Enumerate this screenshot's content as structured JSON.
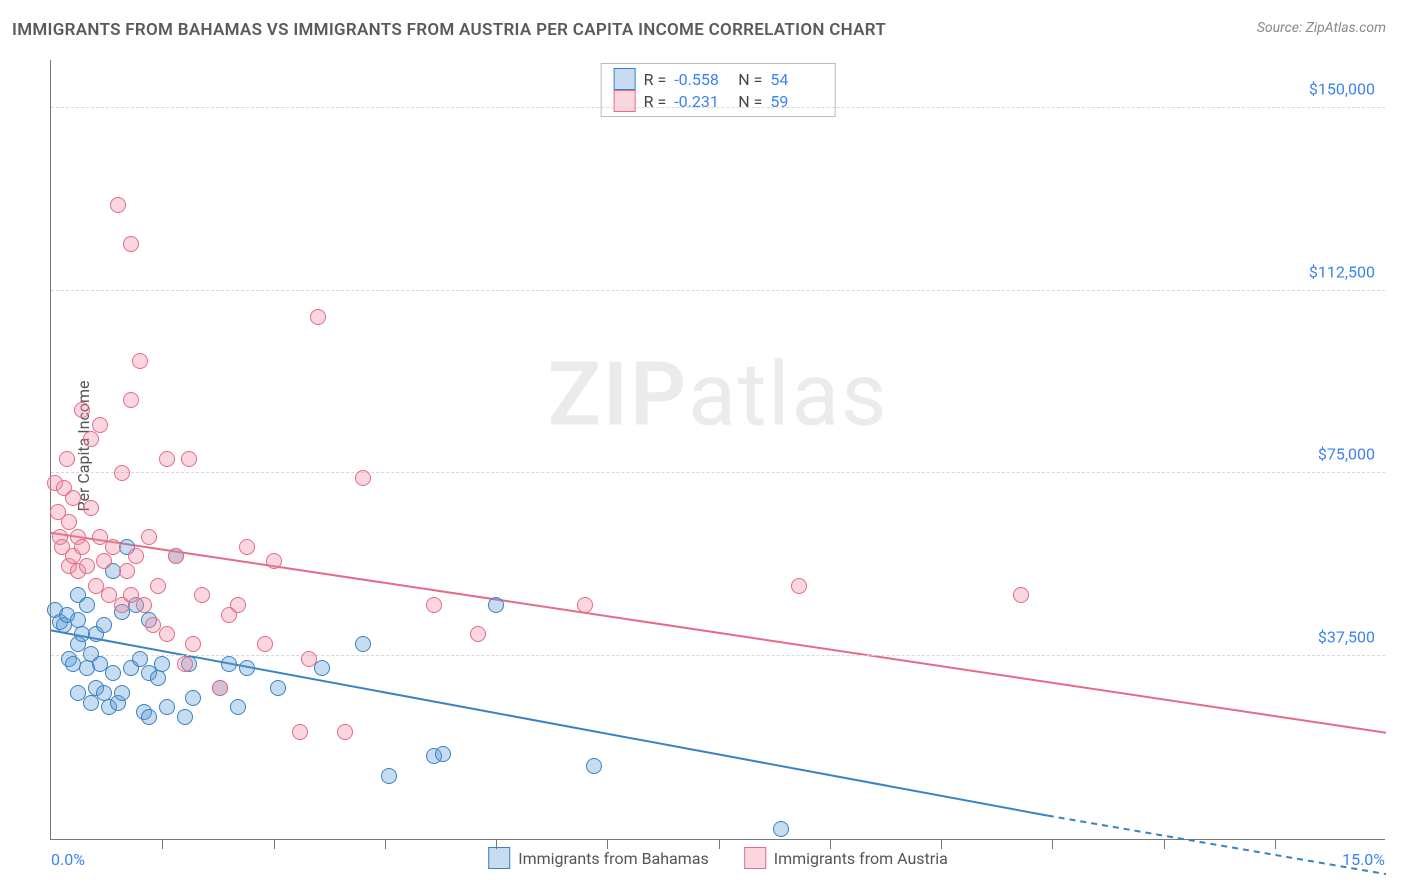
{
  "title": "IMMIGRANTS FROM BAHAMAS VS IMMIGRANTS FROM AUSTRIA PER CAPITA INCOME CORRELATION CHART",
  "source": "Source: ZipAtlas.com",
  "watermark": {
    "bold": "ZIP",
    "light": "atlas"
  },
  "chart": {
    "type": "scatter",
    "background_color": "#ffffff",
    "grid_color": "#d8d8d8",
    "axis_color": "#777777",
    "label_color": "#3b82f6",
    "title_color": "#5a5a5a",
    "y_axis": {
      "title": "Per Capita Income",
      "min": 0,
      "max": 160000,
      "ticks": [
        37500,
        75000,
        112500,
        150000
      ],
      "tick_labels": [
        "$37,500",
        "$75,000",
        "$112,500",
        "$150,000"
      ]
    },
    "x_axis": {
      "min": 0,
      "max": 15,
      "label_left": "0.0%",
      "label_right": "15.0%",
      "tick_positions": [
        1.25,
        2.5,
        3.75,
        5.0,
        6.25,
        7.5,
        8.75,
        10.0,
        11.25,
        12.5,
        13.75
      ]
    },
    "marker_radius": 8,
    "marker_opacity": 0.45,
    "line_width": 2,
    "series": [
      {
        "id": "bahamas",
        "name": "Immigrants from Bahamas",
        "color": "#5b9bd5",
        "fill": "rgba(91,155,213,0.35)",
        "stroke": "#3b82c4",
        "r": "-0.558",
        "n": "54",
        "trend": {
          "x1": 0,
          "y1": 43000,
          "x2_solid": 11.2,
          "y2_solid": 5000,
          "x2_dash": 15,
          "y2_dash": -7000
        },
        "points": [
          [
            0.05,
            47000
          ],
          [
            0.1,
            44500
          ],
          [
            0.15,
            44000
          ],
          [
            0.18,
            46000
          ],
          [
            0.2,
            37000
          ],
          [
            0.25,
            36000
          ],
          [
            0.3,
            50000
          ],
          [
            0.3,
            45000
          ],
          [
            0.3,
            40000
          ],
          [
            0.3,
            30000
          ],
          [
            0.35,
            42000
          ],
          [
            0.4,
            48000
          ],
          [
            0.4,
            35000
          ],
          [
            0.45,
            38000
          ],
          [
            0.45,
            28000
          ],
          [
            0.5,
            42000
          ],
          [
            0.5,
            31000
          ],
          [
            0.55,
            36000
          ],
          [
            0.6,
            44000
          ],
          [
            0.6,
            30000
          ],
          [
            0.65,
            27000
          ],
          [
            0.7,
            55000
          ],
          [
            0.7,
            34000
          ],
          [
            0.75,
            28000
          ],
          [
            0.8,
            46500
          ],
          [
            0.8,
            30000
          ],
          [
            0.85,
            60000
          ],
          [
            0.9,
            35000
          ],
          [
            0.95,
            48000
          ],
          [
            1.0,
            37000
          ],
          [
            1.05,
            26000
          ],
          [
            1.1,
            45000
          ],
          [
            1.1,
            34000
          ],
          [
            1.1,
            25000
          ],
          [
            1.2,
            33000
          ],
          [
            1.25,
            36000
          ],
          [
            1.3,
            27000
          ],
          [
            1.4,
            58000
          ],
          [
            1.5,
            25000
          ],
          [
            1.55,
            36000
          ],
          [
            1.6,
            29000
          ],
          [
            1.9,
            31000
          ],
          [
            2.0,
            36000
          ],
          [
            2.1,
            27000
          ],
          [
            2.2,
            35000
          ],
          [
            2.55,
            31000
          ],
          [
            3.05,
            35000
          ],
          [
            3.5,
            40000
          ],
          [
            3.8,
            13000
          ],
          [
            4.3,
            17000
          ],
          [
            4.4,
            17500
          ],
          [
            5.0,
            48000
          ],
          [
            6.1,
            15000
          ],
          [
            8.2,
            2000
          ]
        ]
      },
      {
        "id": "austria",
        "name": "Immigrants from Austria",
        "color": "#f08ca0",
        "fill": "rgba(240,140,160,0.35)",
        "stroke": "#e56b87",
        "r": "-0.231",
        "n": "59",
        "trend": {
          "x1": 0,
          "y1": 63000,
          "x2_solid": 15,
          "y2_solid": 22000,
          "x2_dash": 15,
          "y2_dash": 22000
        },
        "points": [
          [
            0.05,
            73000
          ],
          [
            0.08,
            67000
          ],
          [
            0.1,
            62000
          ],
          [
            0.12,
            60000
          ],
          [
            0.15,
            72000
          ],
          [
            0.18,
            78000
          ],
          [
            0.2,
            56000
          ],
          [
            0.2,
            65000
          ],
          [
            0.25,
            58000
          ],
          [
            0.25,
            70000
          ],
          [
            0.3,
            55000
          ],
          [
            0.3,
            62000
          ],
          [
            0.35,
            88000
          ],
          [
            0.35,
            60000
          ],
          [
            0.4,
            56000
          ],
          [
            0.45,
            82000
          ],
          [
            0.45,
            68000
          ],
          [
            0.5,
            52000
          ],
          [
            0.55,
            85000
          ],
          [
            0.55,
            62000
          ],
          [
            0.6,
            57000
          ],
          [
            0.65,
            50000
          ],
          [
            0.7,
            60000
          ],
          [
            0.75,
            130000
          ],
          [
            0.8,
            75000
          ],
          [
            0.8,
            48000
          ],
          [
            0.85,
            55000
          ],
          [
            0.9,
            90000
          ],
          [
            0.9,
            50000
          ],
          [
            0.9,
            122000
          ],
          [
            0.95,
            58000
          ],
          [
            1.0,
            98000
          ],
          [
            1.05,
            48000
          ],
          [
            1.1,
            62000
          ],
          [
            1.15,
            44000
          ],
          [
            1.2,
            52000
          ],
          [
            1.3,
            78000
          ],
          [
            1.3,
            42000
          ],
          [
            1.4,
            58000
          ],
          [
            1.5,
            36000
          ],
          [
            1.55,
            78000
          ],
          [
            1.6,
            40000
          ],
          [
            1.7,
            50000
          ],
          [
            1.9,
            31000
          ],
          [
            2.0,
            46000
          ],
          [
            2.1,
            48000
          ],
          [
            2.2,
            60000
          ],
          [
            2.4,
            40000
          ],
          [
            2.5,
            57000
          ],
          [
            2.8,
            22000
          ],
          [
            2.9,
            37000
          ],
          [
            3.0,
            107000
          ],
          [
            3.3,
            22000
          ],
          [
            3.5,
            74000
          ],
          [
            4.3,
            48000
          ],
          [
            4.8,
            42000
          ],
          [
            6.0,
            48000
          ],
          [
            8.4,
            52000
          ],
          [
            10.9,
            50000
          ]
        ]
      }
    ]
  },
  "legend_bottom": [
    {
      "series": "bahamas"
    },
    {
      "series": "austria"
    }
  ]
}
